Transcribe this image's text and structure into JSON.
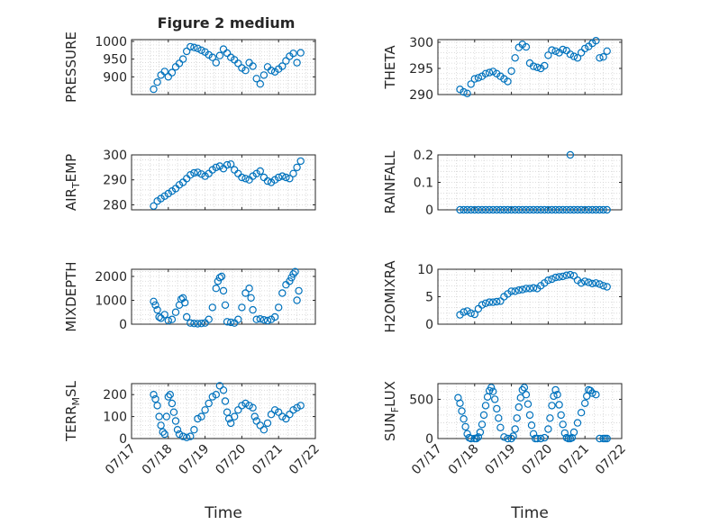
{
  "figure": {
    "title": "Figure 2 medium"
  },
  "chart_data": [
    {
      "type": "scatter",
      "ylabel": "PRESSURE",
      "xlabel": "",
      "xlim": [
        17,
        22
      ],
      "ylim": [
        850,
        1005
      ],
      "yticks": [
        900,
        950,
        1000
      ],
      "x": [
        17.6,
        17.7,
        17.8,
        17.9,
        18.0,
        18.1,
        18.2,
        18.3,
        18.4,
        18.5,
        18.6,
        18.7,
        18.8,
        18.9,
        19.0,
        19.1,
        19.2,
        19.3,
        19.4,
        19.5,
        19.6,
        19.7,
        19.8,
        19.9,
        20.0,
        20.1,
        20.2,
        20.3,
        20.4,
        20.5,
        20.6,
        20.7,
        20.8,
        20.9,
        21.0,
        21.1,
        21.2,
        21.3,
        21.4,
        21.5,
        21.6
      ],
      "y": [
        865,
        885,
        905,
        915,
        900,
        912,
        928,
        938,
        950,
        972,
        985,
        983,
        980,
        975,
        970,
        962,
        955,
        940,
        960,
        978,
        967,
        955,
        948,
        938,
        925,
        918,
        940,
        930,
        895,
        880,
        905,
        928,
        918,
        914,
        922,
        930,
        945,
        958,
        966,
        940,
        968
      ]
    },
    {
      "type": "scatter",
      "ylabel": "THETA",
      "xlabel": "",
      "xlim": [
        17,
        22
      ],
      "ylim": [
        290,
        300.5
      ],
      "yticks": [
        290,
        295,
        300
      ],
      "x": [
        17.6,
        17.7,
        17.8,
        17.9,
        18.0,
        18.1,
        18.2,
        18.3,
        18.4,
        18.5,
        18.6,
        18.7,
        18.8,
        18.9,
        19.0,
        19.1,
        19.2,
        19.3,
        19.4,
        19.5,
        19.6,
        19.7,
        19.8,
        19.9,
        20.0,
        20.1,
        20.2,
        20.3,
        20.4,
        20.5,
        20.6,
        20.7,
        20.8,
        20.9,
        21.0,
        21.1,
        21.2,
        21.3,
        21.4,
        21.5,
        21.6
      ],
      "y": [
        291,
        290.5,
        290.2,
        292,
        293,
        293.2,
        293.5,
        294,
        294.2,
        294.4,
        294,
        293.5,
        293,
        292.5,
        294.5,
        297,
        299,
        299.6,
        299.1,
        296,
        295.4,
        295.2,
        295,
        295.5,
        297.5,
        298.5,
        298.3,
        298,
        298.6,
        298.4,
        297.7,
        297.3,
        297,
        298,
        298.8,
        299.2,
        299.8,
        300.3,
        297,
        297.2,
        298.3
      ]
    },
    {
      "type": "scatter",
      "ylabel": "AIR_TEMP",
      "xlabel": "",
      "xlim": [
        17,
        22
      ],
      "ylim": [
        278,
        300
      ],
      "yticks": [
        280,
        290,
        300
      ],
      "x": [
        17.6,
        17.7,
        17.8,
        17.9,
        18.0,
        18.1,
        18.2,
        18.3,
        18.4,
        18.5,
        18.6,
        18.7,
        18.8,
        18.9,
        19.0,
        19.1,
        19.2,
        19.3,
        19.4,
        19.5,
        19.6,
        19.7,
        19.8,
        19.9,
        20.0,
        20.1,
        20.2,
        20.3,
        20.4,
        20.5,
        20.6,
        20.7,
        20.8,
        20.9,
        21.0,
        21.1,
        21.2,
        21.3,
        21.4,
        21.5,
        21.6
      ],
      "y": [
        279.5,
        281.5,
        282.5,
        283.5,
        284.5,
        285.5,
        286.5,
        288,
        289,
        290.5,
        292,
        292.8,
        293,
        292.3,
        291.5,
        292.5,
        294,
        295,
        295.5,
        294.5,
        296,
        296.3,
        294,
        292.5,
        291,
        290.5,
        290,
        291.5,
        292.5,
        293.5,
        291,
        289.5,
        289,
        290,
        291,
        291.5,
        291,
        290.5,
        292.5,
        295,
        297.5
      ]
    },
    {
      "type": "scatter",
      "ylabel": "RAINFALL",
      "xlabel": "",
      "xlim": [
        17,
        22
      ],
      "ylim": [
        0,
        0.2
      ],
      "yticks": [
        0,
        0.1,
        0.2
      ],
      "x": [
        17.6,
        17.7,
        17.8,
        17.9,
        18.0,
        18.1,
        18.2,
        18.3,
        18.4,
        18.5,
        18.6,
        18.7,
        18.8,
        18.9,
        19.0,
        19.1,
        19.2,
        19.3,
        19.4,
        19.5,
        19.6,
        19.7,
        19.8,
        19.9,
        20.0,
        20.1,
        20.2,
        20.3,
        20.4,
        20.5,
        20.6,
        20.7,
        20.8,
        20.9,
        21.0,
        21.1,
        21.2,
        21.3,
        21.4,
        21.5,
        21.6,
        20.6
      ],
      "y": [
        0,
        0,
        0,
        0,
        0,
        0,
        0,
        0,
        0,
        0,
        0,
        0,
        0,
        0,
        0,
        0,
        0,
        0,
        0,
        0,
        0,
        0,
        0,
        0,
        0,
        0,
        0,
        0,
        0,
        0,
        0,
        0,
        0,
        0,
        0,
        0,
        0,
        0,
        0,
        0,
        0,
        0.2
      ]
    },
    {
      "type": "scatter",
      "ylabel": "MIXDEPTH",
      "xlabel": "",
      "xlim": [
        17,
        22
      ],
      "ylim": [
        0,
        2300
      ],
      "yticks": [
        0,
        1000,
        2000
      ],
      "x": [
        17.6,
        17.65,
        17.7,
        17.75,
        17.8,
        17.9,
        18.0,
        18.1,
        18.2,
        18.3,
        18.35,
        18.4,
        18.45,
        18.5,
        18.6,
        18.7,
        18.8,
        18.9,
        19.0,
        19.1,
        19.2,
        19.3,
        19.35,
        19.4,
        19.45,
        19.5,
        19.55,
        19.6,
        19.7,
        19.8,
        19.9,
        20.0,
        20.1,
        20.2,
        20.25,
        20.3,
        20.4,
        20.5,
        20.6,
        20.7,
        20.8,
        20.9,
        21.0,
        21.1,
        21.2,
        21.3,
        21.35,
        21.4,
        21.45,
        21.5,
        21.55
      ],
      "y": [
        950,
        800,
        600,
        300,
        250,
        400,
        150,
        200,
        500,
        800,
        1050,
        1100,
        900,
        300,
        50,
        30,
        20,
        30,
        50,
        200,
        700,
        1500,
        1800,
        1950,
        2000,
        1400,
        800,
        100,
        80,
        50,
        200,
        700,
        1300,
        1500,
        1100,
        600,
        200,
        220,
        180,
        150,
        200,
        300,
        700,
        1300,
        1650,
        1800,
        1950,
        2100,
        2200,
        1000,
        1400
      ]
    },
    {
      "type": "scatter",
      "ylabel": "H2OMIXRA",
      "xlabel": "",
      "xlim": [
        17,
        22
      ],
      "ylim": [
        0,
        10
      ],
      "yticks": [
        0,
        5,
        10
      ],
      "x": [
        17.6,
        17.7,
        17.8,
        17.9,
        18.0,
        18.1,
        18.2,
        18.3,
        18.4,
        18.5,
        18.6,
        18.7,
        18.8,
        18.9,
        19.0,
        19.1,
        19.2,
        19.3,
        19.4,
        19.5,
        19.6,
        19.7,
        19.8,
        19.9,
        20.0,
        20.1,
        20.2,
        20.3,
        20.4,
        20.5,
        20.6,
        20.7,
        20.8,
        20.9,
        21.0,
        21.1,
        21.2,
        21.3,
        21.4,
        21.5,
        21.6
      ],
      "y": [
        1.7,
        2.2,
        2.4,
        2,
        1.8,
        2.8,
        3.5,
        3.8,
        4,
        4,
        4.1,
        4.2,
        5,
        5.5,
        6,
        6,
        6.2,
        6.3,
        6.5,
        6.5,
        6.6,
        6.5,
        7,
        7.5,
        8,
        8.2,
        8.5,
        8.6,
        8.7,
        8.9,
        9,
        8.8,
        8,
        7.5,
        7.8,
        7.6,
        7.4,
        7.5,
        7.3,
        7,
        6.8
      ]
    },
    {
      "type": "scatter",
      "ylabel": "TERR_MSL",
      "xlabel": "Time",
      "xlim": [
        17,
        22
      ],
      "ylim": [
        0,
        250
      ],
      "yticks": [
        0,
        100,
        200
      ],
      "xticks": [
        "07/17",
        "07/18",
        "07/19",
        "07/20",
        "07/21",
        "07/22"
      ],
      "x": [
        17.6,
        17.65,
        17.7,
        17.75,
        17.8,
        17.85,
        17.9,
        17.95,
        18.0,
        18.05,
        18.1,
        18.15,
        18.2,
        18.25,
        18.3,
        18.4,
        18.5,
        18.6,
        18.7,
        18.8,
        18.9,
        19.0,
        19.1,
        19.2,
        19.3,
        19.4,
        19.5,
        19.55,
        19.6,
        19.65,
        19.7,
        19.8,
        19.9,
        20.0,
        20.1,
        20.2,
        20.3,
        20.35,
        20.4,
        20.5,
        20.6,
        20.7,
        20.8,
        20.9,
        21.0,
        21.1,
        21.2,
        21.3,
        21.4,
        21.5,
        21.6
      ],
      "y": [
        200,
        180,
        150,
        100,
        60,
        30,
        20,
        100,
        190,
        200,
        160,
        120,
        80,
        40,
        20,
        10,
        5,
        10,
        40,
        90,
        100,
        130,
        160,
        190,
        200,
        240,
        220,
        170,
        120,
        90,
        70,
        100,
        130,
        150,
        160,
        150,
        140,
        100,
        80,
        60,
        40,
        70,
        110,
        130,
        120,
        100,
        90,
        110,
        130,
        140,
        150
      ]
    },
    {
      "type": "scatter",
      "ylabel": "SUN_FLUX",
      "xlabel": "Time",
      "xlim": [
        17,
        22
      ],
      "ylim": [
        0,
        700
      ],
      "yticks": [
        0,
        500
      ],
      "xticks": [
        "07/17",
        "07/18",
        "07/19",
        "07/20",
        "07/21",
        "07/22"
      ],
      "x": [
        17.55,
        17.6,
        17.65,
        17.7,
        17.75,
        17.8,
        17.85,
        17.9,
        18.0,
        18.05,
        18.1,
        18.15,
        18.2,
        18.25,
        18.3,
        18.35,
        18.4,
        18.45,
        18.5,
        18.55,
        18.6,
        18.65,
        18.7,
        18.8,
        18.9,
        19.0,
        19.05,
        19.1,
        19.15,
        19.2,
        19.25,
        19.3,
        19.35,
        19.4,
        19.45,
        19.5,
        19.55,
        19.6,
        19.65,
        19.7,
        19.8,
        19.9,
        20.0,
        20.05,
        20.1,
        20.15,
        20.2,
        20.25,
        20.3,
        20.35,
        20.4,
        20.45,
        20.5,
        20.55,
        20.6,
        20.65,
        20.7,
        20.8,
        20.9,
        21.0,
        21.05,
        21.1,
        21.15,
        21.2,
        21.3,
        21.4,
        21.5,
        21.55,
        21.6
      ],
      "y": [
        520,
        450,
        350,
        250,
        150,
        60,
        10,
        0,
        0,
        0,
        20,
        80,
        180,
        300,
        420,
        530,
        610,
        650,
        600,
        500,
        380,
        260,
        140,
        20,
        0,
        0,
        30,
        120,
        260,
        400,
        520,
        620,
        650,
        560,
        440,
        300,
        170,
        60,
        0,
        0,
        0,
        10,
        120,
        260,
        420,
        540,
        620,
        560,
        430,
        300,
        180,
        70,
        10,
        0,
        0,
        10,
        80,
        200,
        330,
        450,
        540,
        620,
        610,
        580,
        560,
        0,
        0,
        0,
        0
      ]
    }
  ]
}
